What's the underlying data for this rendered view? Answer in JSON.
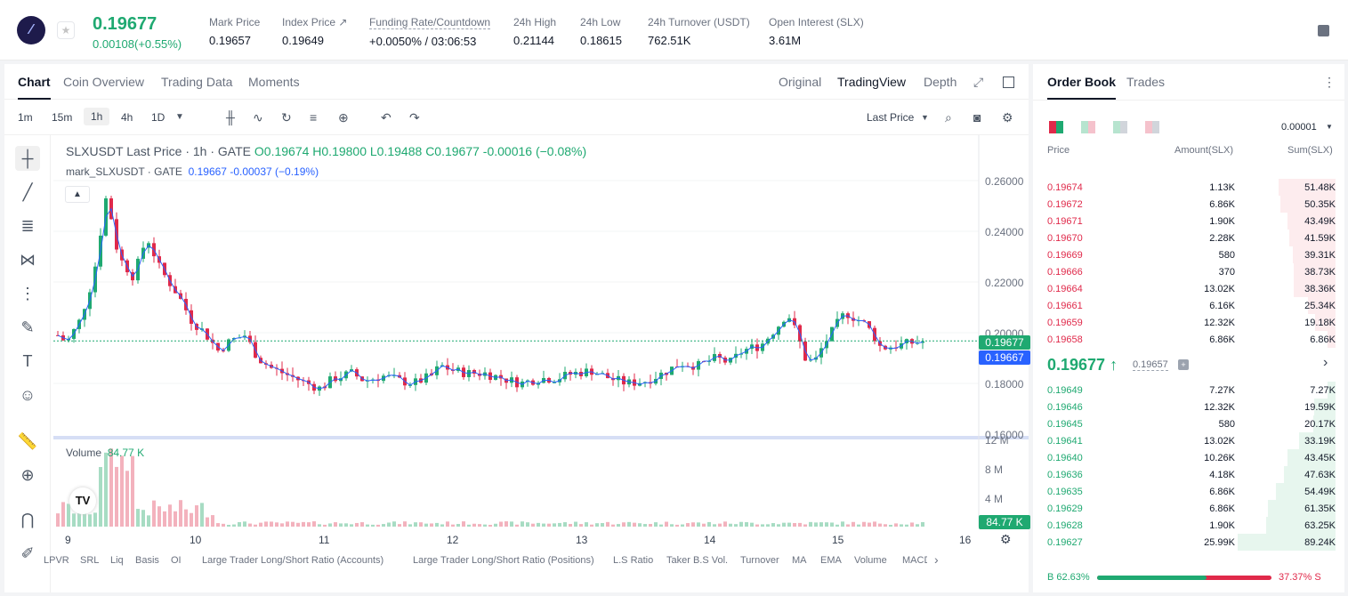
{
  "header": {
    "last_price": "0.19677",
    "change": "0.00108(+0.55%)",
    "stats": [
      {
        "label": "Mark Price",
        "value": "0.19657"
      },
      {
        "label": "Index Price ↗",
        "value": "0.19649"
      },
      {
        "label": "Funding Rate/Countdown",
        "value": "+0.0050% / 03:06:53"
      },
      {
        "label": "24h High",
        "value": "0.21144"
      },
      {
        "label": "24h Low",
        "value": "0.18615"
      },
      {
        "label": "24h Turnover (USDT)",
        "value": "762.51K"
      },
      {
        "label": "Open Interest (SLX)",
        "value": "3.61M"
      }
    ]
  },
  "tabs": [
    "Chart",
    "Coin Overview",
    "Trading Data",
    "Moments"
  ],
  "view_tabs": [
    "Original",
    "TradingView",
    "Depth"
  ],
  "timeframes": [
    "1m",
    "15m",
    "1h",
    "4h",
    "1D"
  ],
  "price_type": "Last Price",
  "legend": {
    "symbol": "SLXUSDT Last Price · 1h · GATE",
    "o": "O0.19674",
    "h": "H0.19800",
    "l": "L0.19488",
    "c": "C0.19677",
    "chg": "-0.00016 (−0.08%)",
    "mark_name": "mark_SLXUSDT · GATE",
    "mark_val": "0.19667",
    "mark_chg": "-0.00037 (−0.19%)"
  },
  "y_axis": [
    "0.26000",
    "0.24000",
    "0.22000",
    "0.20000",
    "0.18000",
    "0.16000"
  ],
  "vol_axis": [
    "12 M",
    "8 M",
    "4 M"
  ],
  "last_tag": "0.19677",
  "mark_tag": "0.19667",
  "volume_label": "Volume",
  "volume_val": "84.77 K",
  "volume_tag": "84.77 K",
  "x_axis": [
    "9",
    "10",
    "11",
    "12",
    "13",
    "14",
    "15",
    "16"
  ],
  "indicators": [
    "LPVR",
    "SRL",
    "Liq",
    "Basis",
    "OI",
    "Large Trader Long/Short Ratio (Accounts)",
    "Large Trader Long/Short Ratio (Positions)",
    "L.S Ratio",
    "Taker B.S Vol.",
    "Turnover",
    "MA",
    "EMA",
    "Volume",
    "MACD"
  ],
  "book": {
    "tabs": [
      "Order Book",
      "Trades"
    ],
    "precision": "0.00001",
    "headers": [
      "Price",
      "Amount(SLX)",
      "Sum(SLX)"
    ],
    "asks": [
      {
        "p": "0.19674",
        "a": "1.13K",
        "s": "51.48K",
        "d": 0.58
      },
      {
        "p": "0.19672",
        "a": "6.86K",
        "s": "50.35K",
        "d": 0.56
      },
      {
        "p": "0.19671",
        "a": "1.90K",
        "s": "43.49K",
        "d": 0.49
      },
      {
        "p": "0.19670",
        "a": "2.28K",
        "s": "41.59K",
        "d": 0.47
      },
      {
        "p": "0.19669",
        "a": "580",
        "s": "39.31K",
        "d": 0.44
      },
      {
        "p": "0.19666",
        "a": "370",
        "s": "38.73K",
        "d": 0.43
      },
      {
        "p": "0.19664",
        "a": "13.02K",
        "s": "38.36K",
        "d": 0.43
      },
      {
        "p": "0.19661",
        "a": "6.16K",
        "s": "25.34K",
        "d": 0.28
      },
      {
        "p": "0.19659",
        "a": "12.32K",
        "s": "19.18K",
        "d": 0.21
      },
      {
        "p": "0.19658",
        "a": "6.86K",
        "s": "6.86K",
        "d": 0.08
      }
    ],
    "mid": "0.19677",
    "mid_mark": "0.19657",
    "bids": [
      {
        "p": "0.19649",
        "a": "7.27K",
        "s": "7.27K",
        "d": 0.08
      },
      {
        "p": "0.19646",
        "a": "12.32K",
        "s": "19.59K",
        "d": 0.22
      },
      {
        "p": "0.19645",
        "a": "580",
        "s": "20.17K",
        "d": 0.23
      },
      {
        "p": "0.19641",
        "a": "13.02K",
        "s": "33.19K",
        "d": 0.37
      },
      {
        "p": "0.19640",
        "a": "10.26K",
        "s": "43.45K",
        "d": 0.49
      },
      {
        "p": "0.19636",
        "a": "4.18K",
        "s": "47.63K",
        "d": 0.53
      },
      {
        "p": "0.19635",
        "a": "6.86K",
        "s": "54.49K",
        "d": 0.61
      },
      {
        "p": "0.19629",
        "a": "6.86K",
        "s": "61.35K",
        "d": 0.69
      },
      {
        "p": "0.19628",
        "a": "1.90K",
        "s": "63.25K",
        "d": 0.71
      },
      {
        "p": "0.19627",
        "a": "25.99K",
        "s": "89.24K",
        "d": 1.0
      }
    ],
    "buy_pct": "B 62.63%",
    "sell_pct": "37.37% S",
    "buy_ratio": 0.6263
  },
  "colors": {
    "up": "#1fa971",
    "down": "#e0294a",
    "mark": "#2962ff"
  }
}
